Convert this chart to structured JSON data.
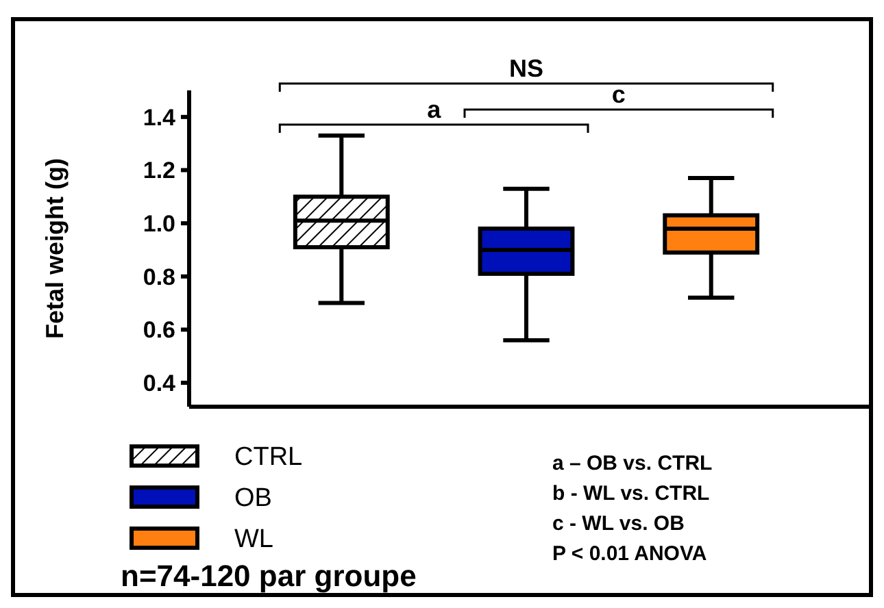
{
  "chart_data": {
    "type": "box",
    "ylabel": "Fetal weight (g)",
    "categories": [
      null,
      null,
      null
    ],
    "ylim": [
      0.31,
      1.5
    ],
    "yticks": [
      {
        "value": 0.4,
        "label": "0.4"
      },
      {
        "value": 0.6,
        "label": "0.6"
      },
      {
        "value": 0.8,
        "label": "0.8"
      },
      {
        "value": 1.0,
        "label": "1.0"
      },
      {
        "value": 1.2,
        "label": "1.2"
      },
      {
        "value": 1.4,
        "label": "1.4"
      }
    ],
    "legend": "bottom left",
    "tick_labels": "y",
    "series": [
      {
        "name": "CTRL",
        "color": "#000000",
        "boxes": [
          {
            "low": 0.7,
            "q1": 0.91,
            "median": 1.01,
            "q3": 1.1,
            "high": 1.33
          },
          null,
          null
        ]
      },
      {
        "name": "OB",
        "color": "#0010b8",
        "boxes": [
          null,
          {
            "low": 0.56,
            "q1": 0.81,
            "median": 0.9,
            "q3": 0.98,
            "high": 1.13
          },
          null
        ]
      },
      {
        "name": "WL",
        "color": "#ff8010",
        "boxes": [
          null,
          null,
          {
            "low": 0.72,
            "q1": 0.89,
            "median": 0.98,
            "q3": 1.03,
            "high": 1.17
          }
        ]
      }
    ],
    "annotations": [
      "NS",
      "a",
      "c",
      "a – OB vs. CTRL",
      "b  - WL vs. CTRL",
      "c  - WL vs. OB",
      "P < 0.01 ANOVA",
      "n=74-120 par groupe"
    ]
  }
}
